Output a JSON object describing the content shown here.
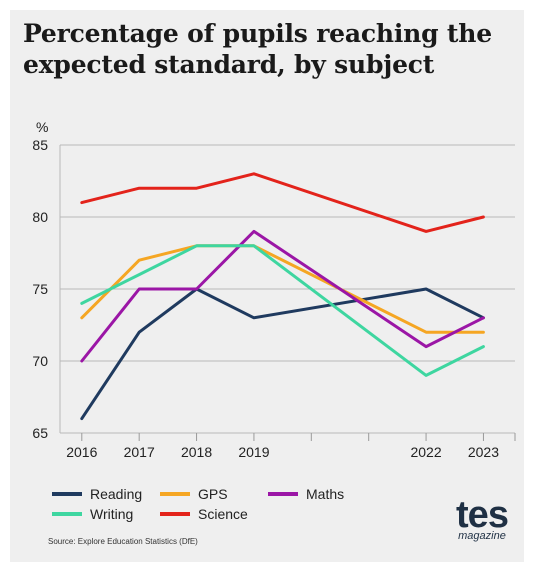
{
  "title": "Percentage of pupils reaching the expected standard, by subject",
  "source": "Source: Explore Education Statistics (DfE)",
  "logo": {
    "word": "tes",
    "sub": "magazine"
  },
  "chart_data": {
    "type": "line",
    "ylabel": "%",
    "xlabel": "",
    "ylim": [
      65,
      85
    ],
    "yticks": [
      65,
      70,
      75,
      80,
      85
    ],
    "x": [
      2016,
      2017,
      2018,
      2019,
      2022,
      2023
    ],
    "x_tick_labels": [
      "2016",
      "2017",
      "2018",
      "2019",
      "2022",
      "2023"
    ],
    "grid": true,
    "legend_position": "bottom",
    "series": [
      {
        "name": "Reading",
        "color": "#1f3a5f",
        "values": [
          66,
          72,
          75,
          73,
          75,
          73
        ]
      },
      {
        "name": "GPS",
        "color": "#f5a623",
        "values": [
          73,
          77,
          78,
          78,
          72,
          72
        ]
      },
      {
        "name": "Maths",
        "color": "#9b16a6",
        "values": [
          70,
          75,
          75,
          79,
          71,
          73
        ]
      },
      {
        "name": "Writing",
        "color": "#3ed6a0",
        "values": [
          74,
          76,
          78,
          78,
          69,
          71
        ]
      },
      {
        "name": "Science",
        "color": "#e3231b",
        "values": [
          81,
          82,
          82,
          83,
          79,
          80
        ]
      }
    ]
  }
}
